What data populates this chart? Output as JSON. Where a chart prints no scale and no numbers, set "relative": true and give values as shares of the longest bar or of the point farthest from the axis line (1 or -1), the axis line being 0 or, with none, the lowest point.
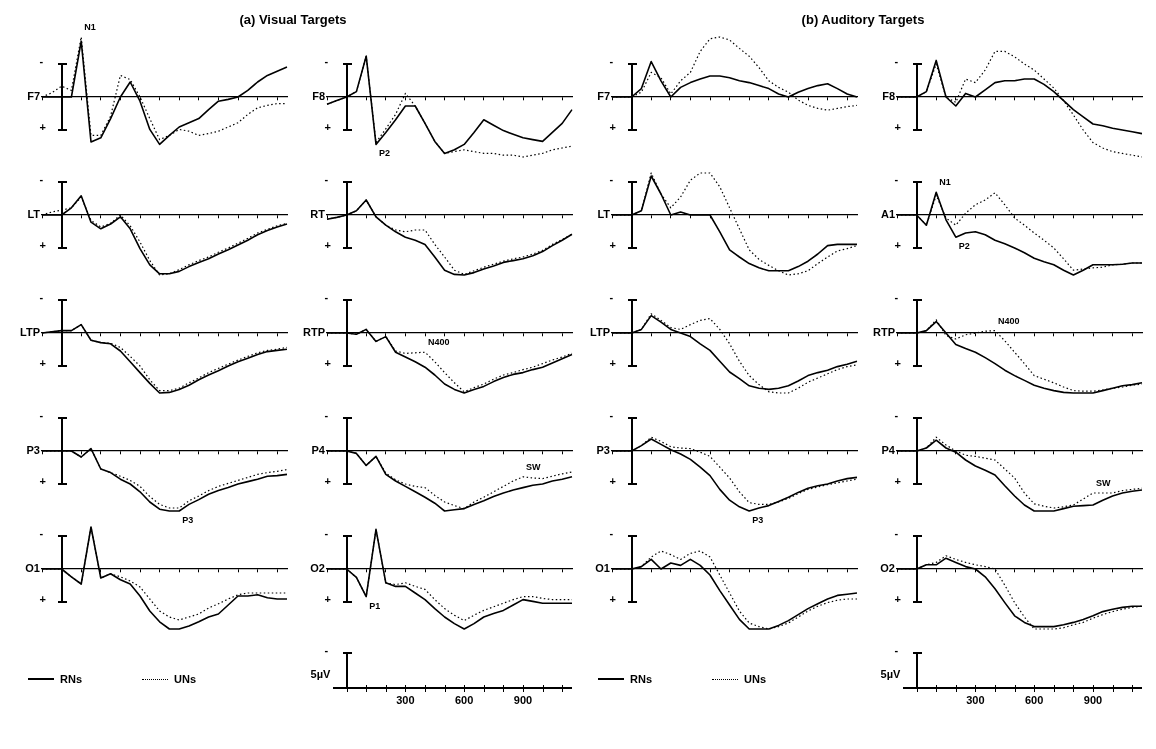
{
  "chart_data": [
    {
      "type": "line",
      "title": "(a) Visual Targets",
      "ylabel": "F7",
      "relative": true,
      "marker": "none",
      "categories": [
        null,
        null,
        null,
        null,
        null,
        null,
        null,
        null,
        null,
        null,
        null,
        null,
        null,
        null,
        null,
        null,
        null,
        null,
        null,
        null,
        null,
        null,
        null,
        null,
        null,
        null
      ],
      "annotations": [
        "-",
        "+",
        "N1"
      ],
      "series": [
        {
          "color": "#000000",
          "line_style": "solid",
          "values": [
            0,
            0,
            0,
            0,
            0.93,
            -0.75,
            -0.68,
            -0.36,
            0,
            0.25,
            -0.07,
            -0.54,
            -0.79,
            -0.64,
            -0.5,
            -0.43,
            -0.36,
            -0.21,
            -0.07,
            -0.04,
            0,
            0.11,
            0.25,
            0.36,
            0.43,
            0.5
          ]
        },
        {
          "color": "#000000",
          "line_style": "dotted",
          "values": [
            0,
            0.07,
            0.18,
            0.11,
            1,
            -0.64,
            -0.64,
            -0.32,
            0.36,
            0.29,
            0,
            -0.36,
            -0.71,
            -0.64,
            -0.54,
            -0.57,
            -0.64,
            -0.61,
            -0.57,
            -0.5,
            -0.43,
            -0.29,
            -0.18,
            -0.14,
            -0.11,
            -0.11
          ]
        }
      ]
    },
    {
      "type": "line",
      "ylabel": "LT",
      "relative": true,
      "marker": "none",
      "categories": [
        null,
        null,
        null,
        null,
        null,
        null,
        null,
        null,
        null,
        null,
        null,
        null,
        null,
        null,
        null,
        null,
        null,
        null,
        null,
        null,
        null,
        null,
        null,
        null,
        null,
        null
      ],
      "annotations": [
        "-",
        "+"
      ],
      "series": [
        {
          "color": "#000000",
          "line_style": "solid",
          "values": [
            0,
            0,
            0,
            0.12,
            0.32,
            -0.12,
            -0.23,
            -0.15,
            -0.03,
            -0.23,
            -0.56,
            -0.83,
            -0.98,
            -0.98,
            -0.94,
            -0.86,
            -0.79,
            -0.73,
            -0.65,
            -0.58,
            -0.5,
            -0.42,
            -0.33,
            -0.26,
            -0.2,
            -0.15
          ]
        },
        {
          "color": "#000000",
          "line_style": "dotted",
          "values": [
            0,
            0.05,
            0.08,
            0.12,
            0.3,
            -0.09,
            -0.2,
            -0.14,
            0,
            -0.18,
            -0.45,
            -0.76,
            -1,
            -0.98,
            -0.91,
            -0.83,
            -0.76,
            -0.7,
            -0.62,
            -0.55,
            -0.47,
            -0.39,
            -0.3,
            -0.24,
            -0.18,
            -0.14
          ]
        }
      ]
    },
    {
      "type": "line",
      "ylabel": "LTP",
      "relative": true,
      "marker": "none",
      "categories": [
        null,
        null,
        null,
        null,
        null,
        null,
        null,
        null,
        null,
        null,
        null,
        null,
        null,
        null,
        null,
        null,
        null,
        null,
        null,
        null,
        null,
        null,
        null,
        null,
        null,
        null
      ],
      "annotations": [
        "-",
        "+"
      ],
      "series": [
        {
          "color": "#000000",
          "line_style": "solid",
          "values": [
            0,
            0.02,
            0.04,
            0.04,
            0.14,
            -0.12,
            -0.16,
            -0.18,
            -0.3,
            -0.48,
            -0.66,
            -0.84,
            -1,
            -0.99,
            -0.94,
            -0.87,
            -0.78,
            -0.7,
            -0.63,
            -0.55,
            -0.48,
            -0.42,
            -0.36,
            -0.31,
            -0.29,
            -0.27
          ]
        },
        {
          "color": "#000000",
          "line_style": "dotted",
          "values": [
            0,
            0.02,
            0.04,
            0.04,
            0.14,
            -0.12,
            -0.16,
            -0.17,
            -0.24,
            -0.39,
            -0.55,
            -0.78,
            -0.96,
            -0.96,
            -0.92,
            -0.83,
            -0.75,
            -0.66,
            -0.59,
            -0.52,
            -0.45,
            -0.39,
            -0.33,
            -0.29,
            -0.27,
            -0.24
          ]
        }
      ]
    },
    {
      "type": "line",
      "ylabel": "P3",
      "relative": true,
      "marker": "none",
      "categories": [
        null,
        null,
        null,
        null,
        null,
        null,
        null,
        null,
        null,
        null,
        null,
        null,
        null,
        null,
        null,
        null,
        null,
        null,
        null,
        null,
        null,
        null,
        null,
        null,
        null,
        null
      ],
      "annotations": [
        "-",
        "+",
        "P3"
      ],
      "series": [
        {
          "color": "#000000",
          "line_style": "solid",
          "values": [
            0,
            0,
            0,
            0,
            -0.1,
            0.04,
            -0.3,
            -0.36,
            -0.47,
            -0.55,
            -0.68,
            -0.85,
            -0.97,
            -1,
            -1,
            -0.89,
            -0.81,
            -0.72,
            -0.66,
            -0.61,
            -0.55,
            -0.51,
            -0.47,
            -0.42,
            -0.41,
            -0.39
          ]
        },
        {
          "color": "#000000",
          "line_style": "dotted",
          "values": [
            0,
            0,
            0,
            0,
            -0.1,
            0.04,
            -0.3,
            -0.36,
            -0.42,
            -0.49,
            -0.59,
            -0.76,
            -0.89,
            -0.95,
            -0.95,
            -0.83,
            -0.75,
            -0.66,
            -0.59,
            -0.54,
            -0.49,
            -0.44,
            -0.39,
            -0.36,
            -0.34,
            -0.31
          ]
        }
      ]
    },
    {
      "type": "line",
      "ylabel": "O1",
      "relative": true,
      "marker": "none",
      "legend": "bottom",
      "categories": [
        null,
        null,
        null,
        null,
        null,
        null,
        null,
        null,
        null,
        null,
        null,
        null,
        null,
        null,
        null,
        null,
        null,
        null,
        null,
        null,
        null,
        null,
        null,
        null,
        null,
        null
      ],
      "annotations": [
        "-",
        "+"
      ],
      "series": [
        {
          "name": "RNs",
          "color": "#000000",
          "line_style": "solid",
          "values": [
            0,
            0,
            0,
            -0.13,
            -0.25,
            0.7,
            -0.15,
            -0.08,
            -0.18,
            -0.25,
            -0.45,
            -0.7,
            -0.88,
            -1,
            -1,
            -0.95,
            -0.88,
            -0.8,
            -0.75,
            -0.6,
            -0.45,
            -0.45,
            -0.43,
            -0.48,
            -0.5,
            -0.5
          ]
        },
        {
          "name": "UNs",
          "color": "#000000",
          "line_style": "dotted",
          "values": [
            0,
            0,
            0,
            -0.13,
            -0.25,
            0.7,
            -0.15,
            -0.08,
            -0.13,
            -0.2,
            -0.3,
            -0.5,
            -0.7,
            -0.8,
            -0.85,
            -0.8,
            -0.75,
            -0.65,
            -0.58,
            -0.5,
            -0.43,
            -0.4,
            -0.4,
            -0.4,
            -0.4,
            -0.4
          ]
        }
      ]
    },
    {
      "type": "line",
      "ylabel": "F8",
      "relative": true,
      "marker": "none",
      "categories": [
        null,
        null,
        null,
        null,
        null,
        null,
        null,
        null,
        null,
        null,
        null,
        null,
        null,
        null,
        null,
        null,
        null,
        null,
        null,
        null,
        null,
        null,
        null,
        null,
        null,
        null
      ],
      "annotations": [
        "-",
        "+",
        "P2"
      ],
      "series": [
        {
          "color": "#000000",
          "line_style": "solid",
          "values": [
            -0.12,
            -0.06,
            0,
            0.09,
            0.68,
            -0.79,
            -0.59,
            -0.38,
            -0.15,
            -0.15,
            -0.44,
            -0.74,
            -0.94,
            -0.88,
            -0.79,
            -0.59,
            -0.38,
            -0.47,
            -0.56,
            -0.62,
            -0.68,
            -0.71,
            -0.74,
            -0.59,
            -0.44,
            -0.21
          ]
        },
        {
          "color": "#000000",
          "line_style": "dotted",
          "values": [
            -0.12,
            -0.06,
            0,
            0.09,
            0.68,
            -0.76,
            -0.53,
            -0.29,
            0.06,
            -0.15,
            -0.44,
            -0.74,
            -0.94,
            -0.91,
            -0.88,
            -0.91,
            -0.94,
            -0.94,
            -0.97,
            -0.97,
            -1,
            -0.97,
            -0.94,
            -0.88,
            -0.85,
            -0.82
          ]
        }
      ]
    },
    {
      "type": "line",
      "ylabel": "RT",
      "relative": true,
      "marker": "none",
      "categories": [
        null,
        null,
        null,
        null,
        null,
        null,
        null,
        null,
        null,
        null,
        null,
        null,
        null,
        null,
        null,
        null,
        null,
        null,
        null,
        null,
        null,
        null,
        null,
        null,
        null,
        null
      ],
      "annotations": [
        "-",
        "+"
      ],
      "series": [
        {
          "color": "#000000",
          "line_style": "solid",
          "values": [
            -0.07,
            -0.04,
            0,
            0.07,
            0.25,
            -0.03,
            -0.17,
            -0.28,
            -0.37,
            -0.42,
            -0.49,
            -0.7,
            -0.92,
            -0.99,
            -1,
            -0.96,
            -0.9,
            -0.85,
            -0.79,
            -0.76,
            -0.73,
            -0.68,
            -0.61,
            -0.51,
            -0.42,
            -0.32
          ]
        },
        {
          "color": "#000000",
          "line_style": "dotted",
          "values": [
            -0.07,
            -0.04,
            0,
            0.07,
            0.25,
            -0.03,
            -0.17,
            -0.25,
            -0.28,
            -0.25,
            -0.25,
            -0.49,
            -0.7,
            -0.92,
            -0.99,
            -0.93,
            -0.87,
            -0.82,
            -0.77,
            -0.73,
            -0.7,
            -0.65,
            -0.59,
            -0.49,
            -0.41,
            -0.32
          ]
        }
      ]
    },
    {
      "type": "line",
      "ylabel": "RTP",
      "relative": true,
      "marker": "none",
      "categories": [
        null,
        null,
        null,
        null,
        null,
        null,
        null,
        null,
        null,
        null,
        null,
        null,
        null,
        null,
        null,
        null,
        null,
        null,
        null,
        null,
        null,
        null,
        null,
        null,
        null,
        null
      ],
      "annotations": [
        "-",
        "+",
        "N400"
      ],
      "series": [
        {
          "color": "#000000",
          "line_style": "solid",
          "values": [
            0,
            0,
            0,
            -0.02,
            0.06,
            -0.14,
            -0.06,
            -0.32,
            -0.4,
            -0.48,
            -0.57,
            -0.7,
            -0.85,
            -0.94,
            -1,
            -0.94,
            -0.89,
            -0.81,
            -0.74,
            -0.69,
            -0.66,
            -0.61,
            -0.57,
            -0.5,
            -0.43,
            -0.36
          ]
        },
        {
          "color": "#000000",
          "line_style": "dotted",
          "values": [
            0,
            0,
            0,
            -0.02,
            0.06,
            -0.14,
            -0.06,
            -0.3,
            -0.34,
            -0.33,
            -0.32,
            -0.48,
            -0.66,
            -0.83,
            -0.98,
            -0.91,
            -0.85,
            -0.77,
            -0.7,
            -0.66,
            -0.61,
            -0.57,
            -0.51,
            -0.45,
            -0.4,
            -0.34
          ]
        }
      ]
    },
    {
      "type": "line",
      "ylabel": "P4",
      "relative": true,
      "marker": "none",
      "categories": [
        null,
        null,
        null,
        null,
        null,
        null,
        null,
        null,
        null,
        null,
        null,
        null,
        null,
        null,
        null,
        null,
        null,
        null,
        null,
        null,
        null,
        null,
        null,
        null,
        null,
        null
      ],
      "annotations": [
        "-",
        "+",
        "SW"
      ],
      "series": [
        {
          "color": "#000000",
          "line_style": "solid",
          "values": [
            0,
            0,
            0,
            -0.04,
            -0.24,
            -0.09,
            -0.39,
            -0.5,
            -0.59,
            -0.68,
            -0.77,
            -0.87,
            -1,
            -0.98,
            -0.96,
            -0.89,
            -0.83,
            -0.76,
            -0.7,
            -0.65,
            -0.61,
            -0.57,
            -0.55,
            -0.5,
            -0.47,
            -0.43
          ]
        },
        {
          "color": "#000000",
          "line_style": "dotted",
          "values": [
            0,
            0,
            0,
            -0.04,
            -0.24,
            -0.09,
            -0.37,
            -0.48,
            -0.55,
            -0.59,
            -0.61,
            -0.74,
            -0.85,
            -0.91,
            -0.96,
            -0.85,
            -0.77,
            -0.68,
            -0.59,
            -0.5,
            -0.43,
            -0.45,
            -0.46,
            -0.42,
            -0.38,
            -0.35
          ]
        }
      ]
    },
    {
      "type": "line",
      "ylabel": "O2",
      "relative": true,
      "marker": "none",
      "categories": [
        null,
        null,
        null,
        null,
        null,
        null,
        null,
        null,
        null,
        null,
        null,
        null,
        null,
        null,
        null,
        null,
        null,
        null,
        null,
        null,
        null,
        null,
        null,
        null,
        null,
        null
      ],
      "annotations": [
        "-",
        "+",
        "P1"
      ],
      "series": [
        {
          "color": "#000000",
          "line_style": "solid",
          "values": [
            0,
            0,
            0,
            -0.14,
            -0.46,
            0.66,
            -0.23,
            -0.29,
            -0.29,
            -0.4,
            -0.51,
            -0.66,
            -0.8,
            -0.91,
            -1,
            -0.91,
            -0.8,
            -0.74,
            -0.69,
            -0.6,
            -0.51,
            -0.54,
            -0.57,
            -0.57,
            -0.57,
            -0.57
          ]
        },
        {
          "color": "#000000",
          "line_style": "dotted",
          "values": [
            0,
            0,
            0,
            -0.14,
            -0.46,
            0.66,
            -0.23,
            -0.26,
            -0.23,
            -0.29,
            -0.34,
            -0.51,
            -0.66,
            -0.77,
            -0.86,
            -0.77,
            -0.69,
            -0.63,
            -0.57,
            -0.51,
            -0.46,
            -0.46,
            -0.49,
            -0.51,
            -0.51,
            -0.51
          ]
        }
      ]
    },
    {
      "type": "other",
      "annotations": [
        "-",
        "5µV",
        "300",
        "600",
        "900"
      ]
    },
    {
      "type": "line",
      "title": "(b) Auditory Targets",
      "ylabel": "F7",
      "relative": true,
      "marker": "none",
      "categories": [
        null,
        null,
        null,
        null,
        null,
        null,
        null,
        null,
        null,
        null,
        null,
        null,
        null,
        null,
        null,
        null,
        null,
        null,
        null,
        null,
        null,
        null,
        null,
        null,
        null,
        null
      ],
      "annotations": [
        "-",
        "+"
      ],
      "series": [
        {
          "color": "#000000",
          "line_style": "solid",
          "values": [
            0,
            0,
            0,
            0.14,
            0.59,
            0.27,
            0,
            0.16,
            0.24,
            0.3,
            0.35,
            0.35,
            0.32,
            0.27,
            0.24,
            0.19,
            0.14,
            0.05,
            0,
            0.08,
            0.14,
            0.19,
            0.22,
            0.14,
            0.05,
            0
          ]
        },
        {
          "color": "#000000",
          "line_style": "dotted",
          "values": [
            0,
            0,
            0,
            0.08,
            0.41,
            0.32,
            0.05,
            0.27,
            0.41,
            0.76,
            0.97,
            1,
            0.95,
            0.81,
            0.68,
            0.49,
            0.27,
            0.16,
            0.08,
            -0.05,
            -0.14,
            -0.19,
            -0.22,
            -0.19,
            -0.16,
            -0.14
          ]
        }
      ]
    },
    {
      "type": "line",
      "ylabel": "LT",
      "relative": true,
      "marker": "none",
      "categories": [
        null,
        null,
        null,
        null,
        null,
        null,
        null,
        null,
        null,
        null,
        null,
        null,
        null,
        null,
        null,
        null,
        null,
        null,
        null,
        null,
        null,
        null,
        null,
        null,
        null,
        null
      ],
      "annotations": [
        "-",
        "+"
      ],
      "series": [
        {
          "color": "#000000",
          "line_style": "solid",
          "values": [
            0,
            0,
            0,
            0.07,
            0.65,
            0.35,
            0,
            0.05,
            0,
            0,
            0,
            -0.28,
            -0.58,
            -0.7,
            -0.81,
            -0.88,
            -0.93,
            -0.93,
            -0.93,
            -0.86,
            -0.77,
            -0.65,
            -0.51,
            -0.49,
            -0.49,
            -0.49
          ]
        },
        {
          "color": "#000000",
          "line_style": "dotted",
          "values": [
            0,
            0,
            0,
            0.07,
            0.7,
            0.35,
            0.12,
            0.3,
            0.58,
            0.7,
            0.7,
            0.47,
            0.12,
            -0.23,
            -0.58,
            -0.74,
            -0.84,
            -0.93,
            -1,
            -0.98,
            -0.93,
            -0.81,
            -0.7,
            -0.6,
            -0.56,
            -0.51
          ]
        }
      ]
    },
    {
      "type": "line",
      "ylabel": "LTP",
      "relative": true,
      "marker": "none",
      "categories": [
        null,
        null,
        null,
        null,
        null,
        null,
        null,
        null,
        null,
        null,
        null,
        null,
        null,
        null,
        null,
        null,
        null,
        null,
        null,
        null,
        null,
        null,
        null,
        null,
        null,
        null
      ],
      "annotations": [
        "-",
        "+"
      ],
      "series": [
        {
          "color": "#000000",
          "line_style": "solid",
          "values": [
            0,
            0,
            0,
            0.06,
            0.29,
            0.18,
            0.06,
            0,
            -0.06,
            -0.18,
            -0.29,
            -0.47,
            -0.65,
            -0.76,
            -0.88,
            -0.92,
            -0.94,
            -0.92,
            -0.88,
            -0.8,
            -0.71,
            -0.66,
            -0.62,
            -0.56,
            -0.52,
            -0.47
          ]
        },
        {
          "color": "#000000",
          "line_style": "dotted",
          "values": [
            0,
            0,
            0,
            0.06,
            0.32,
            0.21,
            0.09,
            0.06,
            0.14,
            0.21,
            0.24,
            0.06,
            -0.18,
            -0.47,
            -0.71,
            -0.86,
            -0.98,
            -1,
            -1,
            -0.92,
            -0.82,
            -0.75,
            -0.68,
            -0.61,
            -0.56,
            -0.53
          ]
        }
      ]
    },
    {
      "type": "line",
      "ylabel": "P3",
      "relative": true,
      "marker": "none",
      "categories": [
        null,
        null,
        null,
        null,
        null,
        null,
        null,
        null,
        null,
        null,
        null,
        null,
        null,
        null,
        null,
        null,
        null,
        null,
        null,
        null,
        null,
        null,
        null,
        null,
        null,
        null
      ],
      "annotations": [
        "-",
        "+",
        "P3"
      ],
      "series": [
        {
          "color": "#000000",
          "line_style": "solid",
          "values": [
            0,
            0,
            0,
            0.09,
            0.2,
            0.11,
            0.02,
            -0.05,
            -0.14,
            -0.27,
            -0.41,
            -0.64,
            -0.82,
            -0.93,
            -1,
            -0.95,
            -0.91,
            -0.84,
            -0.77,
            -0.69,
            -0.62,
            -0.58,
            -0.55,
            -0.5,
            -0.46,
            -0.44
          ]
        },
        {
          "color": "#000000",
          "line_style": "dotted",
          "values": [
            0,
            0,
            0,
            0.09,
            0.23,
            0.16,
            0.07,
            0.05,
            0.04,
            -0.02,
            -0.09,
            -0.27,
            -0.45,
            -0.68,
            -0.86,
            -0.89,
            -0.89,
            -0.85,
            -0.79,
            -0.71,
            -0.64,
            -0.6,
            -0.56,
            -0.53,
            -0.5,
            -0.47
          ]
        }
      ]
    },
    {
      "type": "line",
      "ylabel": "O1",
      "relative": true,
      "marker": "none",
      "legend": "bottom",
      "categories": [
        null,
        null,
        null,
        null,
        null,
        null,
        null,
        null,
        null,
        null,
        null,
        null,
        null,
        null,
        null,
        null,
        null,
        null,
        null,
        null,
        null,
        null,
        null,
        null,
        null,
        null
      ],
      "annotations": [
        "-",
        "+"
      ],
      "series": [
        {
          "name": "RNs",
          "color": "#000000",
          "line_style": "solid",
          "values": [
            0,
            0,
            0,
            0.04,
            0.16,
            0,
            0.1,
            0.06,
            0.16,
            0.06,
            -0.1,
            -0.36,
            -0.6,
            -0.84,
            -1,
            -1,
            -1,
            -0.94,
            -0.86,
            -0.76,
            -0.66,
            -0.58,
            -0.5,
            -0.44,
            -0.42,
            -0.4
          ]
        },
        {
          "name": "UNs",
          "color": "#000000",
          "line_style": "dotted",
          "values": [
            0,
            0,
            0,
            0.04,
            0.2,
            0.3,
            0.24,
            0.16,
            0.26,
            0.3,
            0.2,
            -0.1,
            -0.4,
            -0.7,
            -0.9,
            -0.96,
            -1,
            -0.96,
            -0.9,
            -0.8,
            -0.7,
            -0.62,
            -0.56,
            -0.52,
            -0.5,
            -0.5
          ]
        }
      ]
    },
    {
      "type": "line",
      "ylabel": "F8",
      "relative": true,
      "marker": "none",
      "categories": [
        null,
        null,
        null,
        null,
        null,
        null,
        null,
        null,
        null,
        null,
        null,
        null,
        null,
        null,
        null,
        null,
        null,
        null,
        null,
        null,
        null,
        null,
        null,
        null,
        null,
        null
      ],
      "annotations": [
        "-",
        "+"
      ],
      "series": [
        {
          "color": "#000000",
          "line_style": "solid",
          "values": [
            0,
            0,
            0,
            0.09,
            0.61,
            0,
            -0.15,
            0.06,
            0,
            0.12,
            0.24,
            0.27,
            0.27,
            0.3,
            0.3,
            0.21,
            0.09,
            -0.06,
            -0.21,
            -0.33,
            -0.45,
            -0.48,
            -0.52,
            -0.55,
            -0.58,
            -0.61
          ]
        },
        {
          "color": "#000000",
          "line_style": "dotted",
          "values": [
            0,
            0,
            0,
            0.09,
            0.55,
            0,
            -0.09,
            0.3,
            0.24,
            0.45,
            0.76,
            0.76,
            0.67,
            0.55,
            0.45,
            0.3,
            0.15,
            -0.06,
            -0.3,
            -0.55,
            -0.76,
            -0.85,
            -0.91,
            -0.94,
            -0.97,
            -1
          ]
        }
      ]
    },
    {
      "type": "line",
      "ylabel": "A1",
      "relative": true,
      "marker": "none",
      "categories": [
        null,
        null,
        null,
        null,
        null,
        null,
        null,
        null,
        null,
        null,
        null,
        null,
        null,
        null,
        null,
        null,
        null,
        null,
        null,
        null,
        null,
        null,
        null,
        null,
        null,
        null
      ],
      "annotations": [
        "-",
        "+",
        "N1",
        "P2"
      ],
      "series": [
        {
          "color": "#000000",
          "line_style": "solid",
          "values": [
            0,
            0,
            0,
            -0.17,
            0.38,
            -0.08,
            -0.37,
            -0.3,
            -0.28,
            -0.33,
            -0.42,
            -0.48,
            -0.55,
            -0.63,
            -0.72,
            -0.78,
            -0.83,
            -0.92,
            -1,
            -0.92,
            -0.83,
            -0.83,
            -0.83,
            -0.82,
            -0.8,
            -0.8
          ]
        },
        {
          "color": "#000000",
          "line_style": "dotted",
          "values": [
            0,
            0,
            0,
            -0.17,
            0.33,
            -0.05,
            -0.17,
            0.03,
            0.17,
            0.25,
            0.37,
            0.17,
            -0.05,
            -0.17,
            -0.3,
            -0.42,
            -0.55,
            -0.73,
            -0.92,
            -0.9,
            -0.88,
            -0.87,
            -0.83,
            -0.82,
            -0.8,
            -0.8
          ]
        }
      ]
    },
    {
      "type": "line",
      "ylabel": "RTP",
      "relative": true,
      "marker": "none",
      "categories": [
        null,
        null,
        null,
        null,
        null,
        null,
        null,
        null,
        null,
        null,
        null,
        null,
        null,
        null,
        null,
        null,
        null,
        null,
        null,
        null,
        null,
        null,
        null,
        null,
        null,
        null
      ],
      "annotations": [
        "-",
        "+",
        "N400"
      ],
      "series": [
        {
          "color": "#000000",
          "line_style": "solid",
          "values": [
            0,
            0,
            0,
            0.04,
            0.19,
            0,
            -0.19,
            -0.26,
            -0.32,
            -0.41,
            -0.51,
            -0.62,
            -0.71,
            -0.79,
            -0.87,
            -0.92,
            -0.96,
            -0.99,
            -1,
            -1,
            -1,
            -0.96,
            -0.92,
            -0.88,
            -0.86,
            -0.83
          ]
        },
        {
          "color": "#000000",
          "line_style": "dotted",
          "values": [
            0,
            0,
            0,
            0.04,
            0.22,
            -0.04,
            -0.1,
            -0.03,
            0,
            0.03,
            0.04,
            -0.13,
            -0.32,
            -0.51,
            -0.71,
            -0.77,
            -0.83,
            -0.9,
            -0.96,
            -0.97,
            -0.97,
            -0.95,
            -0.92,
            -0.9,
            -0.87,
            -0.85
          ]
        }
      ]
    },
    {
      "type": "line",
      "ylabel": "P4",
      "relative": true,
      "marker": "none",
      "categories": [
        null,
        null,
        null,
        null,
        null,
        null,
        null,
        null,
        null,
        null,
        null,
        null,
        null,
        null,
        null,
        null,
        null,
        null,
        null,
        null,
        null,
        null,
        null,
        null,
        null,
        null
      ],
      "annotations": [
        "-",
        "+",
        "SW"
      ],
      "series": [
        {
          "color": "#000000",
          "line_style": "solid",
          "values": [
            0,
            0,
            0,
            0.05,
            0.18,
            0.05,
            -0.02,
            -0.15,
            -0.25,
            -0.32,
            -0.4,
            -0.58,
            -0.75,
            -0.9,
            -1,
            -1,
            -1,
            -0.96,
            -0.92,
            -0.91,
            -0.9,
            -0.82,
            -0.75,
            -0.7,
            -0.67,
            -0.65
          ]
        },
        {
          "color": "#000000",
          "line_style": "dotted",
          "values": [
            0,
            0,
            0,
            0.05,
            0.23,
            0.1,
            0,
            -0.07,
            -0.09,
            -0.12,
            -0.15,
            -0.3,
            -0.45,
            -0.7,
            -0.88,
            -0.92,
            -0.95,
            -0.93,
            -0.9,
            -0.8,
            -0.7,
            -0.7,
            -0.7,
            -0.66,
            -0.64,
            -0.62
          ]
        }
      ]
    },
    {
      "type": "line",
      "ylabel": "O2",
      "relative": true,
      "marker": "none",
      "categories": [
        null,
        null,
        null,
        null,
        null,
        null,
        null,
        null,
        null,
        null,
        null,
        null,
        null,
        null,
        null,
        null,
        null,
        null,
        null,
        null,
        null,
        null,
        null,
        null,
        null,
        null
      ],
      "annotations": [
        "-",
        "+"
      ],
      "series": [
        {
          "color": "#000000",
          "line_style": "solid",
          "values": [
            0,
            0,
            0,
            0.07,
            0.07,
            0.18,
            0.11,
            0.04,
            0,
            -0.13,
            -0.33,
            -0.56,
            -0.78,
            -0.89,
            -0.96,
            -0.96,
            -0.96,
            -0.93,
            -0.89,
            -0.84,
            -0.78,
            -0.71,
            -0.67,
            -0.64,
            -0.62,
            -0.62
          ]
        },
        {
          "color": "#000000",
          "line_style": "dotted",
          "values": [
            0,
            0,
            0,
            0.07,
            0.11,
            0.22,
            0.16,
            0.11,
            0.07,
            0.04,
            0,
            -0.27,
            -0.56,
            -0.8,
            -1,
            -1,
            -1,
            -0.98,
            -0.93,
            -0.89,
            -0.82,
            -0.76,
            -0.71,
            -0.67,
            -0.64,
            -0.62
          ]
        }
      ]
    },
    {
      "type": "other",
      "annotations": [
        "-",
        "5µV",
        "300",
        "600",
        "900"
      ]
    }
  ]
}
